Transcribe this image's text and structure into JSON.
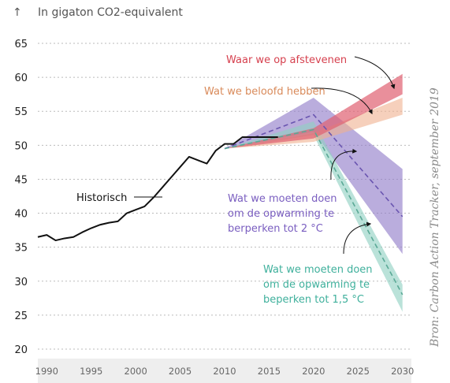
{
  "unit_label": "In gigaton CO2-equivalent",
  "source": "Bron: Carbon Action Tracker, september 2019",
  "colors": {
    "historical": "#111111",
    "current_policy": "#e06070",
    "pledges": "#f0b090",
    "two_degree": "#8f7ac8",
    "one_five_degree": "#8fd0c2",
    "label_current_policy": "#d6404e",
    "label_pledges": "#d98a5a",
    "label_two_degree": "#7a5ec0",
    "label_one_five_degree": "#3fb09c"
  },
  "chart_data": {
    "type": "line",
    "xlim": [
      1989,
      2031
    ],
    "ylim": [
      20,
      65
    ],
    "x_ticks": [
      1990,
      1995,
      2000,
      2005,
      2010,
      2015,
      2020,
      2025,
      2030
    ],
    "y_ticks": [
      20,
      25,
      30,
      35,
      40,
      45,
      50,
      55,
      60,
      65
    ],
    "grid": "horizontal-dashed",
    "historical": {
      "label": "Historisch",
      "x": [
        1989,
        1990,
        1991,
        1992,
        1993,
        1994,
        1995,
        1996,
        1997,
        1998,
        1999,
        2000,
        2001,
        2002,
        2003,
        2004,
        2005,
        2006,
        2007,
        2008,
        2009,
        2010,
        2011,
        2012,
        2013,
        2014,
        2015,
        2016
      ],
      "y": [
        36.5,
        36.8,
        36.0,
        36.3,
        36.5,
        37.2,
        37.8,
        38.3,
        38.6,
        38.8,
        40.0,
        40.5,
        41.0,
        42.3,
        43.8,
        45.3,
        46.8,
        48.3,
        47.8,
        47.3,
        49.2,
        50.2,
        50.2,
        51.2,
        51.2,
        51.2,
        51.2,
        51.2
      ]
    },
    "scenarios": [
      {
        "key": "current_policy",
        "label_lines": [
          "Waar we op afstevenen"
        ],
        "x": [
          2010,
          2020,
          2030
        ],
        "upper": [
          49.5,
          52.5,
          60.5
        ],
        "lower": [
          49.5,
          51.0,
          57.5
        ]
      },
      {
        "key": "pledges",
        "label_lines": [
          "Wat we beloofd hebben"
        ],
        "x": [
          2010,
          2020,
          2030
        ],
        "upper": [
          49.5,
          51.8,
          57.0
        ],
        "lower": [
          49.5,
          50.5,
          54.5
        ]
      },
      {
        "key": "two_degree",
        "label_lines": [
          "Wat we moeten doen",
          "om de opwarming te",
          "berperken tot 2 °C"
        ],
        "x": [
          2010,
          2020,
          2030
        ],
        "upper": [
          49.5,
          57.0,
          46.5
        ],
        "lower": [
          49.5,
          52.0,
          34.0
        ],
        "median": [
          49.5,
          54.5,
          39.5
        ]
      },
      {
        "key": "one_five_degree",
        "label_lines": [
          "Wat we moeten doen",
          "om de opwarming te",
          "beperken tot 1,5 °C"
        ],
        "x": [
          2010,
          2020,
          2030
        ],
        "upper": [
          49.5,
          53.5,
          29.5
        ],
        "lower": [
          49.5,
          51.5,
          25.5
        ],
        "median": [
          49.5,
          52.3,
          28.0
        ]
      }
    ]
  }
}
